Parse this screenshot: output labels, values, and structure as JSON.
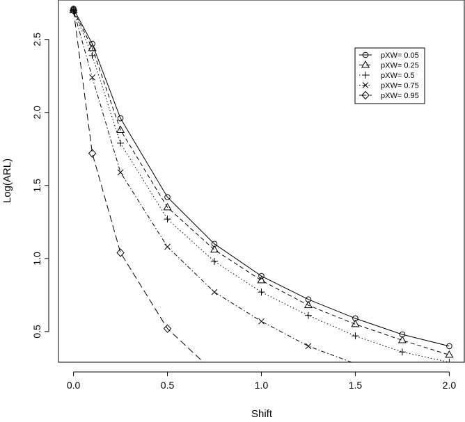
{
  "chart_data": {
    "type": "line",
    "title": "",
    "xlabel": "Shift",
    "ylabel": "Log(ARL)",
    "xlim": [
      -0.08,
      2.08
    ],
    "ylim": [
      0.29,
      2.77
    ],
    "x_ticks": [
      0.0,
      0.5,
      1.0,
      1.5,
      2.0
    ],
    "x_tick_labels": [
      "0.0",
      "0.5",
      "1.0",
      "1.5",
      "2.0"
    ],
    "y_ticks": [
      0.5,
      1.0,
      1.5,
      2.0,
      2.5
    ],
    "y_tick_labels": [
      "0.5",
      "1.0",
      "1.5",
      "2.0",
      "2.5"
    ],
    "grid": false,
    "legend_position": "top-right",
    "series": [
      {
        "name": "pXW= 0.05",
        "marker": "circle",
        "dash": "solid",
        "x": [
          0,
          0.1,
          0.25,
          0.5,
          0.75,
          1.0,
          1.25,
          1.5,
          1.75,
          2.0
        ],
        "y": [
          2.71,
          2.47,
          1.96,
          1.42,
          1.1,
          0.88,
          0.72,
          0.59,
          0.48,
          0.4
        ]
      },
      {
        "name": "pXW= 0.25",
        "marker": "triangle",
        "dash": "dashed",
        "x": [
          0,
          0.1,
          0.25,
          0.5,
          0.75,
          1.0,
          1.25,
          1.5,
          1.75,
          2.0
        ],
        "y": [
          2.7,
          2.44,
          1.88,
          1.35,
          1.06,
          0.85,
          0.68,
          0.55,
          0.44,
          0.34
        ]
      },
      {
        "name": "pXW= 0.5",
        "marker": "plus",
        "dash": "dotted",
        "x": [
          0,
          0.1,
          0.25,
          0.5,
          0.75,
          1.0,
          1.25,
          1.5,
          1.75,
          2.0
        ],
        "y": [
          2.7,
          2.39,
          1.79,
          1.27,
          0.98,
          0.77,
          0.61,
          0.47,
          0.36,
          0.29
        ]
      },
      {
        "name": "pXW= 0.75",
        "marker": "cross",
        "dash": "dotdash",
        "x": [
          0,
          0.1,
          0.25,
          0.5,
          0.75,
          1.0,
          1.25,
          1.5
        ],
        "y": [
          2.7,
          2.24,
          1.59,
          1.08,
          0.77,
          0.57,
          0.4,
          0.28
        ]
      },
      {
        "name": "pXW= 0.95",
        "marker": "diamond",
        "dash": "longdash",
        "x": [
          0,
          0.1,
          0.25,
          0.5,
          0.7
        ],
        "y": [
          2.7,
          1.72,
          1.04,
          0.52,
          0.28
        ]
      }
    ]
  }
}
